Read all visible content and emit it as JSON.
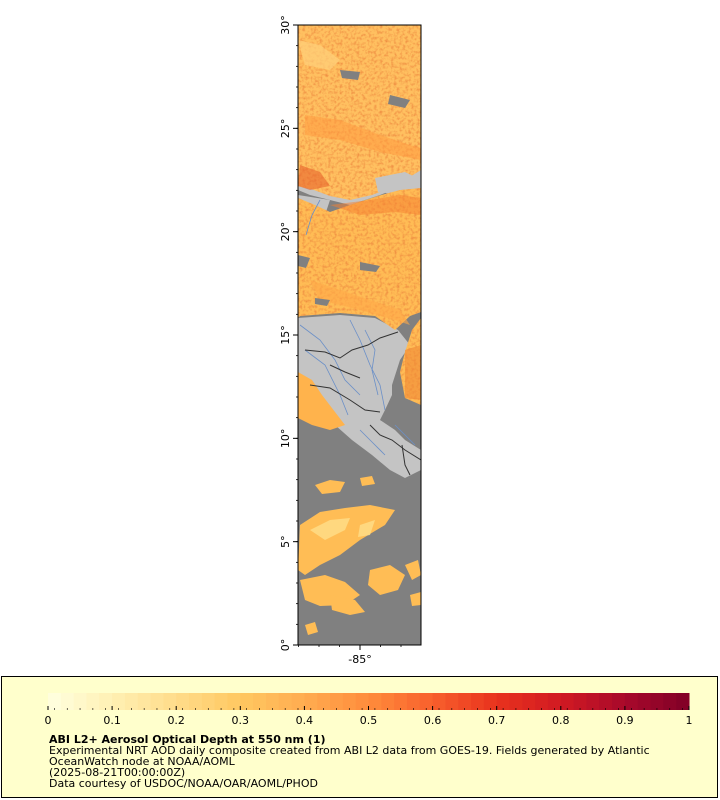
{
  "map": {
    "lat_ticks": [
      {
        "value": 0,
        "label": "0°"
      },
      {
        "value": 5,
        "label": "5°"
      },
      {
        "value": 10,
        "label": "10°"
      },
      {
        "value": 15,
        "label": "15°"
      },
      {
        "value": 20,
        "label": "20°"
      },
      {
        "value": 25,
        "label": "25°"
      },
      {
        "value": 30,
        "label": "30°"
      }
    ],
    "lon_ticks": [
      {
        "value": -85,
        "label": "-85°"
      }
    ],
    "lat_range": [
      0,
      30
    ],
    "colors": {
      "ocean_no_data": "#808080",
      "land": "#c4c4c4",
      "rivers": "#6a8fc8",
      "borders": "#333333",
      "frame": "#000000"
    }
  },
  "legend": {
    "ticks": [
      "0",
      "0.1",
      "0.2",
      "0.3",
      "0.4",
      "0.5",
      "0.6",
      "0.7",
      "0.8",
      "0.9",
      "1"
    ],
    "range": [
      0,
      1
    ],
    "colormap": [
      "#ffffe0",
      "#fff0b3",
      "#ffdc8a",
      "#ffc861",
      "#ffac50",
      "#ff8c3c",
      "#f8602c",
      "#e8321e",
      "#d11a22",
      "#a8092b",
      "#800026"
    ],
    "background": "#ffffcc",
    "title": "ABI L2+ Aerosol Optical Depth at 550 nm (1)",
    "line1": "Experimental NRT AOD daily composite created from ABI L2 data from GOES-19. Fields generated by Atlantic",
    "line2": "OceanWatch node at NOAA/AOML",
    "line3": "(2025-08-21T00:00:00Z)",
    "line4": "Data courtesy of USDOC/NOAA/OAR/AOML/PHOD"
  }
}
